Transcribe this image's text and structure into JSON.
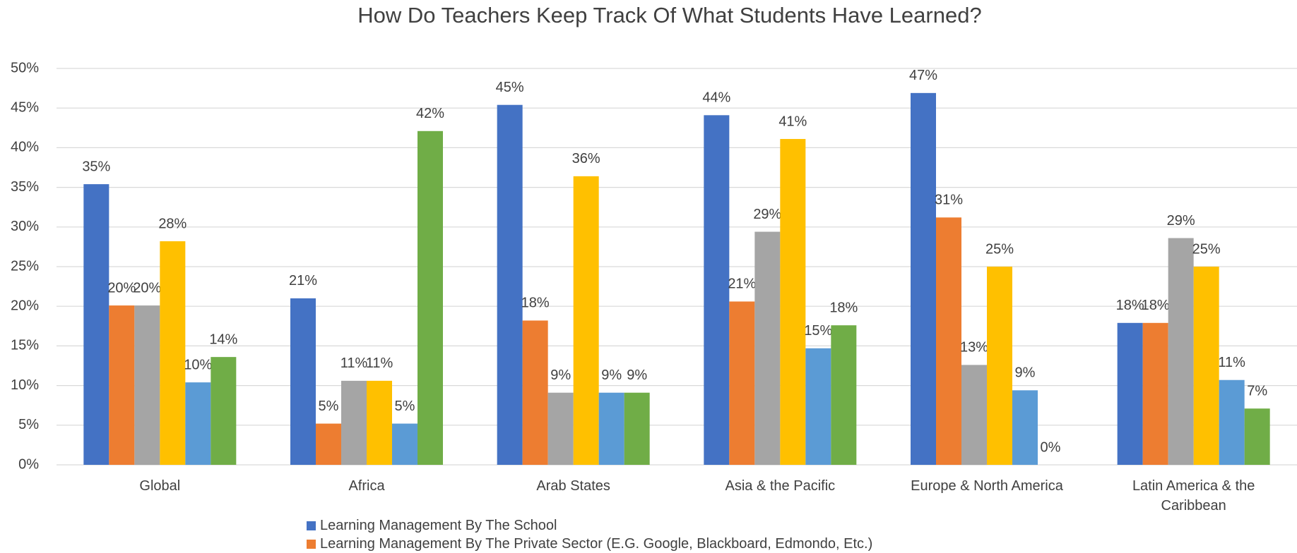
{
  "chart_data": {
    "type": "bar",
    "title": "How Do Teachers Keep Track Of What Students Have Learned?",
    "categories": [
      "Global",
      "Africa",
      "Arab States",
      "Asia & the Pacific",
      "Europe & North America",
      "Latin America & the Caribbean"
    ],
    "series": [
      {
        "name": "Learning Management By The School",
        "color": "#4472c4",
        "values": [
          35.4,
          21.0,
          45.4,
          44.1,
          46.9,
          17.9
        ],
        "value_labels": [
          "35%",
          "21%",
          "45%",
          "44%",
          "47%",
          "18%"
        ]
      },
      {
        "name": "Learning Management By The Private Sector (E.G. Google, Blackboard, Edmondo, Etc.)",
        "color": "#ed7d31",
        "values": [
          20.1,
          5.2,
          18.2,
          20.6,
          31.2,
          17.9
        ],
        "value_labels": [
          "20%",
          "5%",
          "18%",
          "21%",
          "31%",
          "18%"
        ]
      },
      {
        "color": "#a5a5a5",
        "values": [
          20.1,
          10.6,
          9.1,
          29.4,
          12.6,
          28.6
        ],
        "value_labels": [
          "20%",
          "11%",
          "9%",
          "29%",
          "13%",
          "29%"
        ]
      },
      {
        "color": "#ffc000",
        "values": [
          28.2,
          10.6,
          36.4,
          41.1,
          25.0,
          25.0
        ],
        "value_labels": [
          "28%",
          "11%",
          "36%",
          "41%",
          "25%",
          "25%"
        ]
      },
      {
        "color": "#5b9bd5",
        "values": [
          10.4,
          5.2,
          9.1,
          14.7,
          9.4,
          10.7
        ],
        "value_labels": [
          "10%",
          "5%",
          "9%",
          "15%",
          "9%",
          "11%"
        ]
      },
      {
        "color": "#70ad47",
        "values": [
          13.6,
          42.1,
          9.1,
          17.6,
          0,
          7.1
        ],
        "value_labels": [
          "14%",
          "42%",
          "9%",
          "18%",
          "0%",
          "7%"
        ]
      }
    ],
    "ylim": [
      0,
      50
    ],
    "yticks": [
      {
        "value": 0,
        "label": "0%"
      },
      {
        "value": 5,
        "label": "5%"
      },
      {
        "value": 10,
        "label": "10%"
      },
      {
        "value": 15,
        "label": "15%"
      },
      {
        "value": 20,
        "label": "20%"
      },
      {
        "value": 25,
        "label": "25%"
      },
      {
        "value": 30,
        "label": "30%"
      },
      {
        "value": 35,
        "label": "35%"
      },
      {
        "value": 40,
        "label": "40%"
      },
      {
        "value": 45,
        "label": "45%"
      },
      {
        "value": 50,
        "label": "50%"
      }
    ],
    "grid": true
  }
}
